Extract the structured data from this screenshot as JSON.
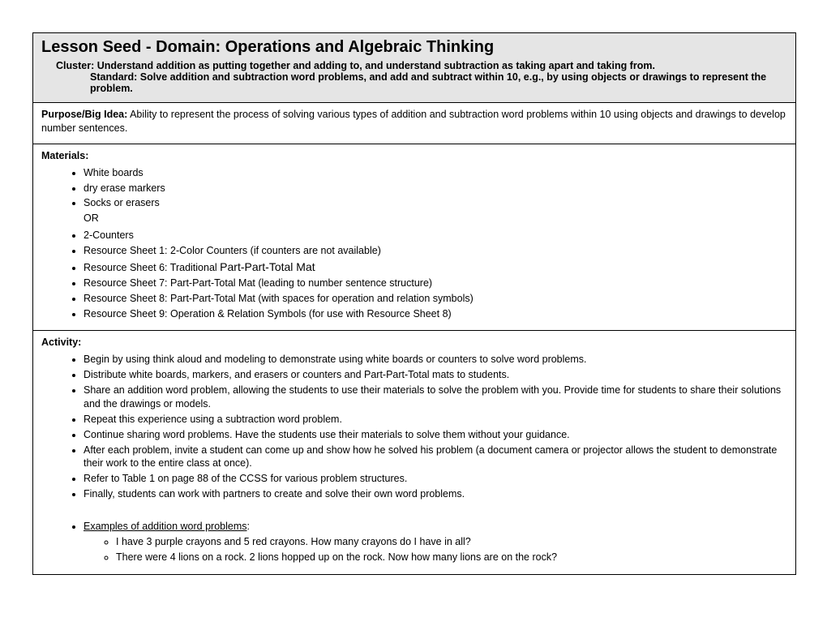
{
  "header": {
    "title": "Lesson Seed - Domain: Operations and Algebraic Thinking",
    "cluster": "Cluster: Understand addition as putting together and adding to, and understand subtraction as taking apart and taking from.",
    "standard": "Standard: Solve addition and subtraction word problems, and add and subtract within 10, e.g., by using objects or drawings to represent the problem."
  },
  "purpose": {
    "label": "Purpose/Big Idea:",
    "text": " Ability to represent the process of solving various types of addition and subtraction word problems within 10 using objects and drawings to develop number sentences."
  },
  "materials": {
    "label": "Materials:",
    "items_a": [
      "White boards",
      "dry erase markers",
      "Socks or erasers"
    ],
    "or": "OR",
    "items_b": [
      "2-Counters",
      "Resource Sheet 1: 2-Color Counters (if counters are not available)"
    ],
    "item_ppt_pre": "Resource Sheet 6: Traditional ",
    "item_ppt": "Part-Part-Total Mat",
    "items_c": [
      "Resource Sheet 7: Part-Part-Total Mat (leading to number sentence structure)",
      "Resource Sheet 8: Part-Part-Total Mat (with spaces for operation and relation symbols)",
      "Resource Sheet 9: Operation & Relation Symbols (for use with Resource Sheet 8)"
    ]
  },
  "activity": {
    "label": "Activity:",
    "items": [
      "Begin by using think aloud and modeling to demonstrate using white boards or counters to solve word problems.",
      "Distribute white boards, markers, and erasers or counters and Part-Part-Total mats to students.",
      "Share an addition word problem, allowing the students to use their materials to solve the problem with you.  Provide time for students to share their solutions and the drawings or models.",
      "Repeat this experience using a subtraction word problem.",
      "Continue sharing word problems. Have the students use their materials to solve them without your guidance.",
      "After each problem, invite a student can come up and show how he solved his problem (a document camera or projector allows the student to demonstrate their work to the entire class at once).",
      "Refer to Table 1 on page 88 of the CCSS for various problem structures.",
      "Finally, students can work with partners to create and solve their own word problems."
    ],
    "examples_label": "Examples of addition word problems",
    "examples": [
      "I have 3 purple crayons and 5 red crayons. How many crayons do I have in all?",
      "There were 4 lions on a rock. 2 lions hopped up on the rock. Now how many lions are on the rock?"
    ]
  }
}
